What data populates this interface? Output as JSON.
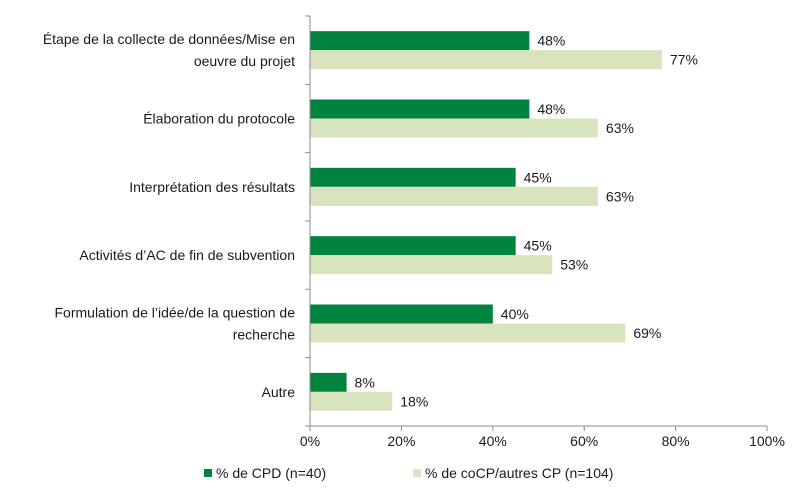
{
  "chart_data": {
    "type": "bar",
    "orientation": "horizontal",
    "categories": [
      [
        "Étape de la collecte de données/Mise en",
        "oeuvre du projet"
      ],
      [
        "Élaboration du protocole"
      ],
      [
        "Interprétation des résultats"
      ],
      [
        "Activités d’AC de fin de subvention"
      ],
      [
        "Formulation de l’idée/de la question de",
        "recherche"
      ],
      [
        "Autre"
      ]
    ],
    "series": [
      {
        "name": "% de CPD (n=40)",
        "color": "#00833e",
        "values": [
          48,
          48,
          45,
          45,
          40,
          8
        ],
        "labels": [
          "48%",
          "48%",
          "45%",
          "45%",
          "40%",
          "8%"
        ]
      },
      {
        "name": "% de coCP/autres CP (n=104)",
        "color": "#d7e4bd",
        "values": [
          77,
          63,
          63,
          53,
          69,
          18
        ],
        "labels": [
          "77%",
          "63%",
          "63%",
          "53%",
          "69%",
          "18%"
        ]
      }
    ],
    "xlim": [
      0,
      100
    ],
    "x_ticks": [
      0,
      20,
      40,
      60,
      80,
      100
    ],
    "x_tick_labels": [
      "0%",
      "20%",
      "40%",
      "60%",
      "80%",
      "100%"
    ],
    "grid": false,
    "legend_position": "bottom",
    "title": "",
    "xlabel": "",
    "ylabel": ""
  }
}
